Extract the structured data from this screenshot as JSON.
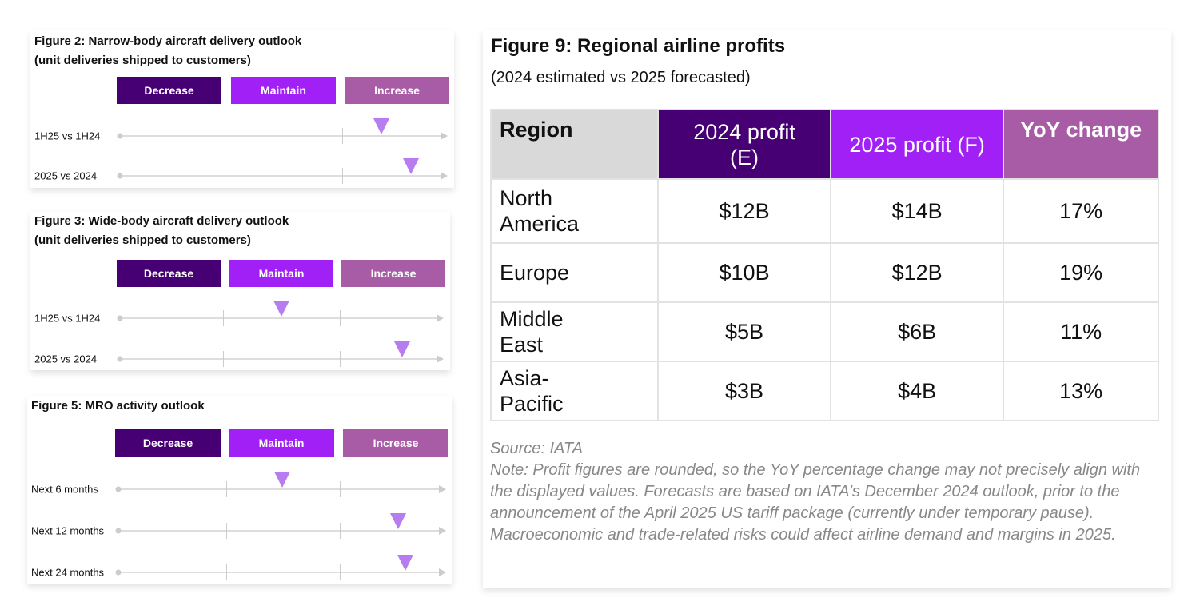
{
  "colors": {
    "decrease": "#460073",
    "maintain": "#a020f5",
    "increase": "#a95ca6",
    "marker": "#b77cf0"
  },
  "chart_data": [
    {
      "type": "scale-indicator",
      "title": "Figure 2: Narrow-body aircraft delivery outlook",
      "subtitle": "(unit deliveries shipped to customers)",
      "categories": [
        "Decrease",
        "Maintain",
        "Increase"
      ],
      "scale": [
        0,
        3
      ],
      "rows": [
        {
          "label": "1H25 vs 1H24",
          "value": 2.37
        },
        {
          "label": "2025 vs 2024",
          "value": 2.65
        }
      ]
    },
    {
      "type": "scale-indicator",
      "title": "Figure 3: Wide-body aircraft delivery outlook",
      "subtitle": "(unit deliveries shipped to customers)",
      "categories": [
        "Decrease",
        "Maintain",
        "Increase"
      ],
      "scale": [
        0,
        3
      ],
      "rows": [
        {
          "label": "1H25 vs 1H24",
          "value": 1.5
        },
        {
          "label": "2025 vs 2024",
          "value": 2.6
        }
      ]
    },
    {
      "type": "scale-indicator",
      "title": "Figure 5: MRO activity outlook",
      "subtitle": "",
      "categories": [
        "Decrease",
        "Maintain",
        "Increase"
      ],
      "scale": [
        0,
        3
      ],
      "rows": [
        {
          "label": "Next 6 months",
          "value": 1.49
        },
        {
          "label": "Next 12 months",
          "value": 2.55
        },
        {
          "label": "Next 24 months",
          "value": 2.62
        }
      ]
    },
    {
      "type": "table",
      "title": "Figure 9: Regional airline profits",
      "subtitle": "(2024 estimated vs 2025 forecasted)",
      "headers": [
        "Region",
        "2024 profit (E)",
        "2025 profit (F)",
        "YoY change"
      ],
      "rows": [
        [
          "North America",
          "$12B",
          "$14B",
          "17%"
        ],
        [
          "Europe",
          "$10B",
          "$12B",
          "19%"
        ],
        [
          "Middle East",
          "$5B",
          "$6B",
          "11%"
        ],
        [
          "Asia-Pacific",
          "$3B",
          "$4B",
          "13%"
        ]
      ],
      "source": "Source: IATA",
      "note": "Note: Profit figures are rounded, so the YoY percentage change may not precisely align with the displayed values. Forecasts are based on IATA’s December 2024 outlook, prior to the announcement of the April 2025 US tariff package (currently under temporary pause). Macroeconomic and trade-related risks could affect airline demand and margins in 2025."
    }
  ]
}
